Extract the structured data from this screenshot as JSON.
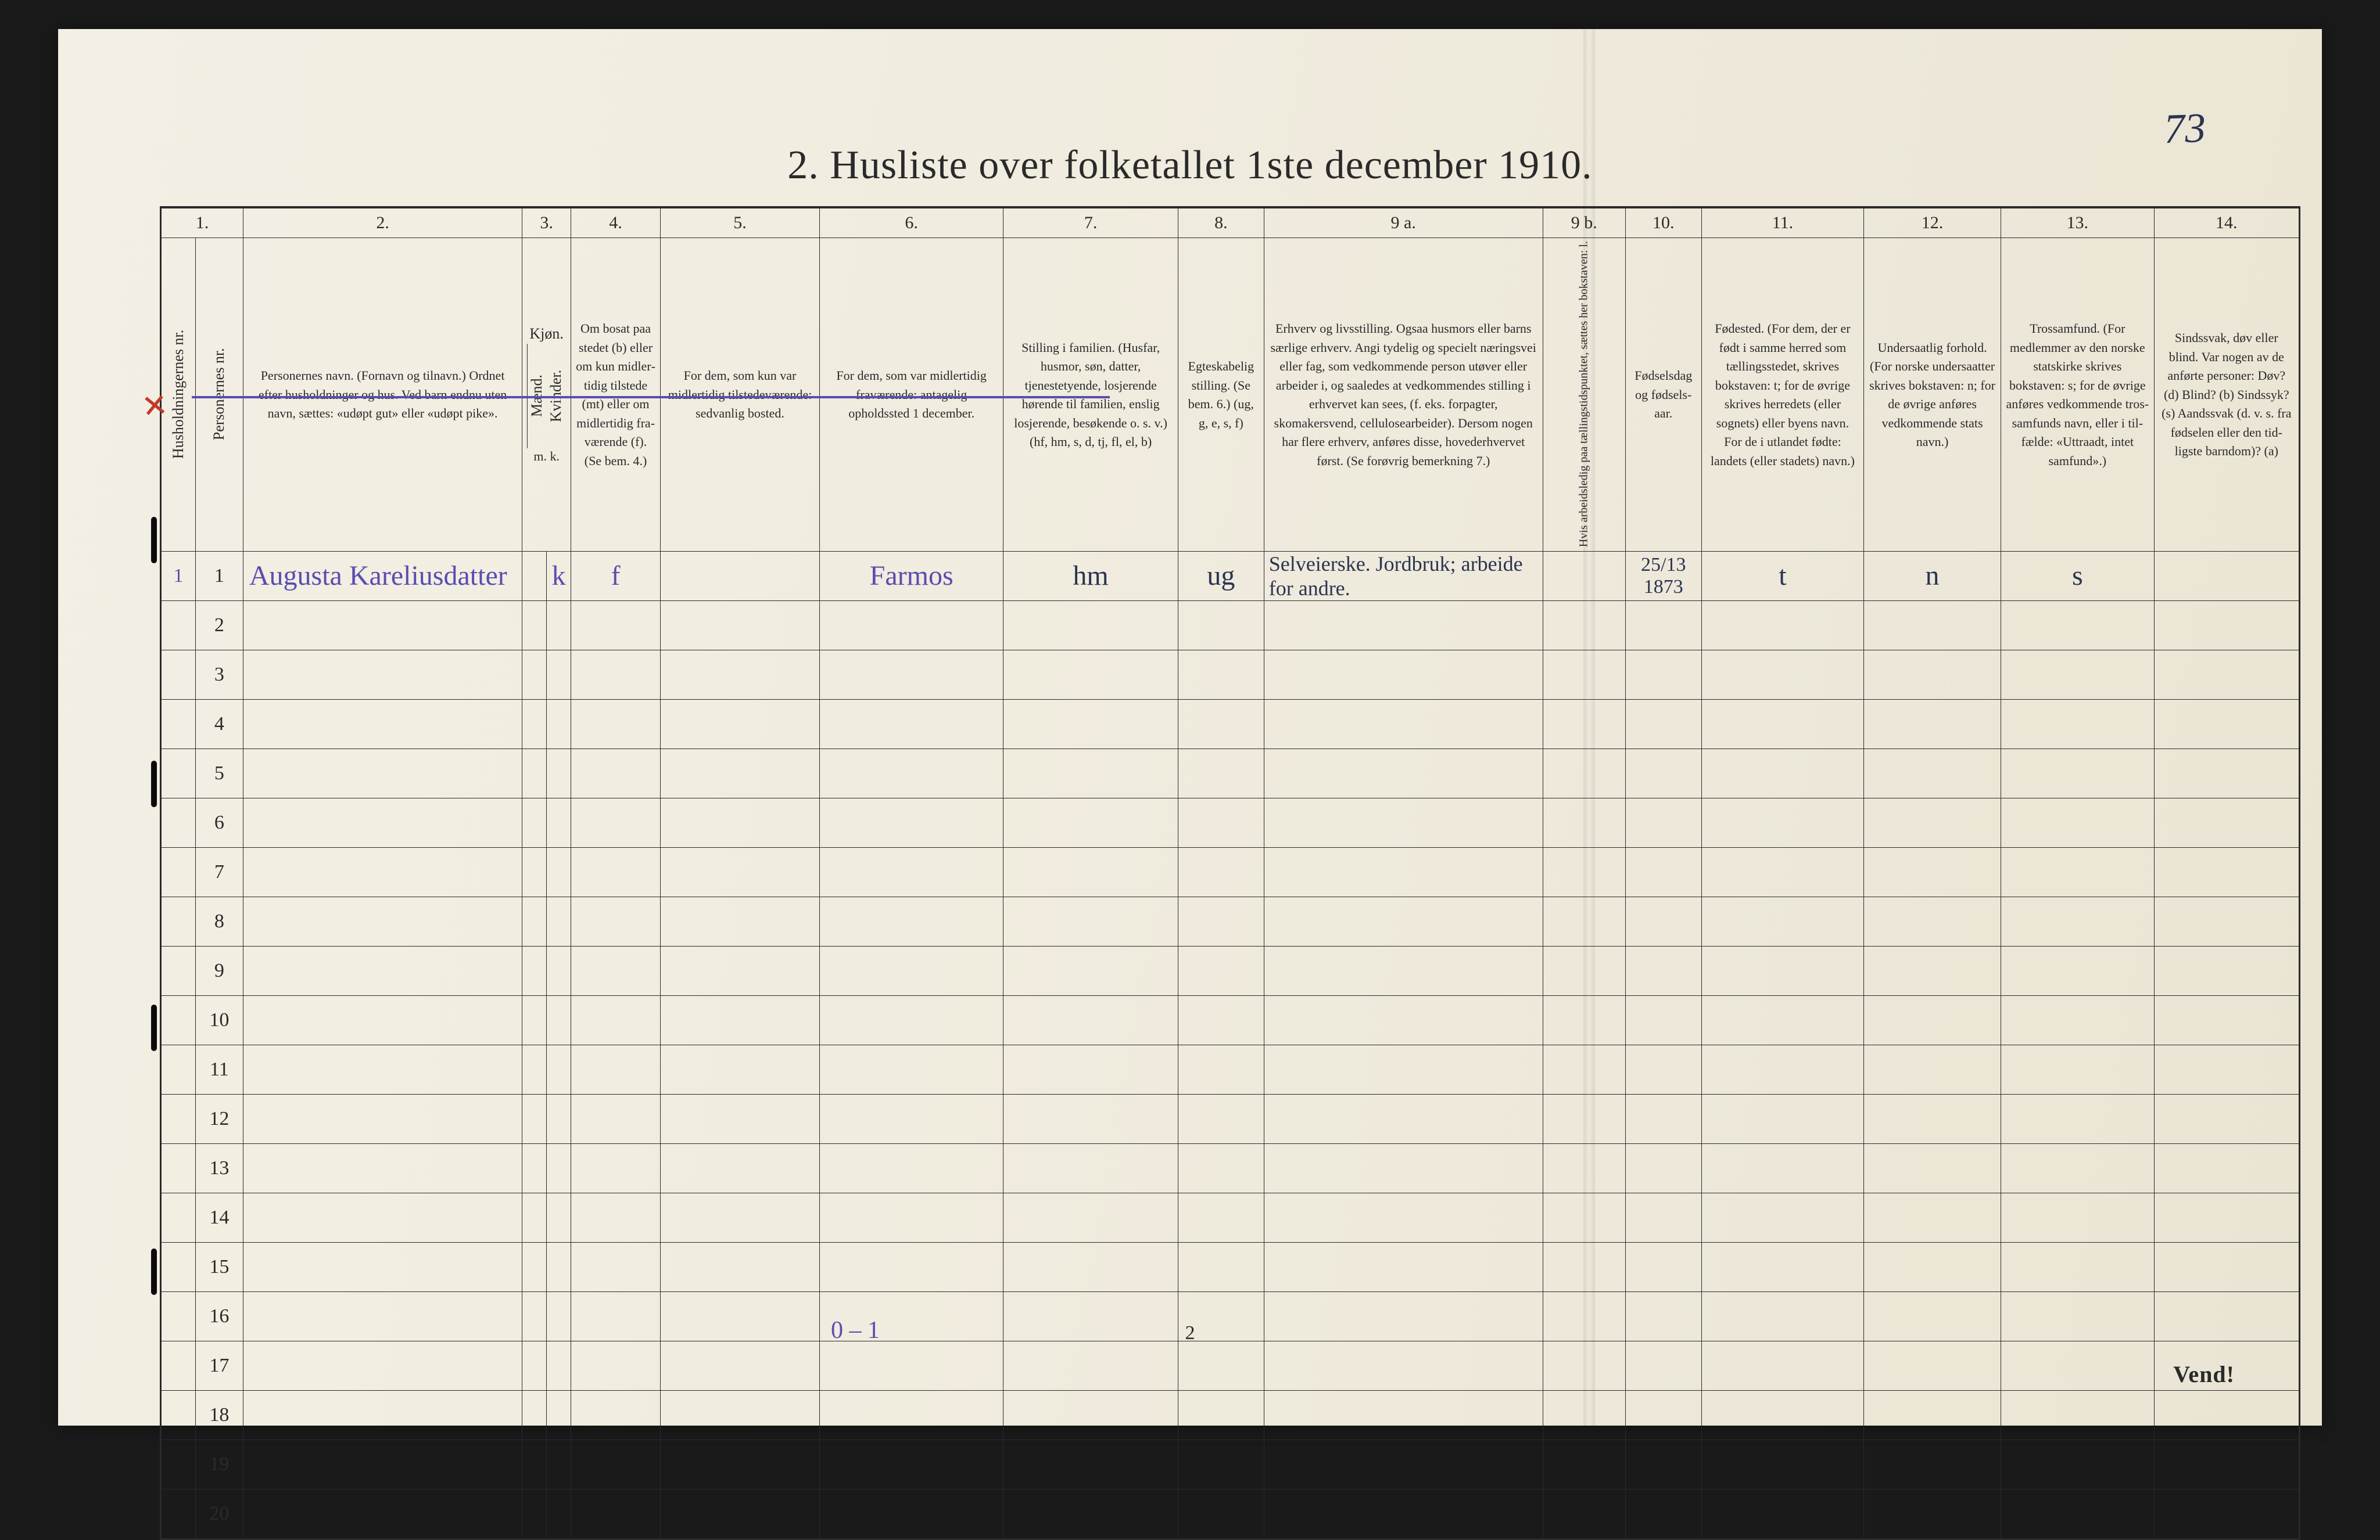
{
  "page_number_handwritten": "73",
  "title": "2.  Husliste over folketallet 1ste december 1910.",
  "colors": {
    "paper_left": "#f3efe4",
    "paper_right": "#eae4d4",
    "ink": "#2a2a2a",
    "hand_ink": "#2b3550",
    "purple_pencil": "#5a4db0",
    "red_pencil": "#c23a2a",
    "background": "#1a1a1a"
  },
  "header_numbers": [
    "1.",
    "2.",
    "3.",
    "4.",
    "5.",
    "6.",
    "7.",
    "8.",
    "9 a.",
    "9 b.",
    "10.",
    "11.",
    "12.",
    "13.",
    "14."
  ],
  "headers": {
    "c1": "Husholdningernes nr.",
    "c1b": "Personernes nr.",
    "c2": "Personernes navn.\n(Fornavn og tilnavn.)\nOrdnet efter husholdninger og hus.\nVed barn endnu uten navn, sættes: «udøpt gut» eller «udøpt pike».",
    "c3top": "Kjøn.",
    "c3a": "Mænd.",
    "c3b": "Kvinder.",
    "c3foot": "m.   k.",
    "c4": "Om bosat paa stedet (b) eller om kun midler­tidig tilstede (mt) eller om midler­tidig fra­værende (f).\n(Se bem. 4.)",
    "c5": "For dem, som kun var midlertidig tilstede­værende:\nsedvanlig bosted.",
    "c6": "For dem, som var midlertidig fraværende:\nantagelig opholdssted 1 december.",
    "c7": "Stilling i familien.\n(Husfar, husmor, søn, datter, tjenestetyende, lo­sjerende hørende til familien, enslig losjerende, besøkende o. s. v.)\n(hf, hm, s, d, tj, fl, el, b)",
    "c8": "Egteska­belig stilling.\n(Se bem. 6.)\n(ug, g, e, s, f)",
    "c9a": "Erhverv og livsstilling.\nOgsaa husmors eller barns særlige erhverv.\nAngi tydelig og specielt næringsvei eller fag, som vedkommende person utøver eller arbeider i, og saaledes at vedkommendes stilling i erhvervet kan sees, (f. eks. forpagter, skomakersvend, cellulose­arbeider). Dersom nogen har flere erhverv, anføres disse, hovederhvervet først.\n(Se forøvrig bemerkning 7.)",
    "c9b": "Hvis arbeidsledig paa tællingstidspunktet, sættes her bokstaven: l.",
    "c10": "Fødsels­dag og fødsels­aar.",
    "c11": "Fødested.\n(For dem, der er født i samme herred som tællingsstedet, skrives bokstaven: t; for de øvrige skrives herredets (eller sognets) eller byens navn. For de i utlandet fødte: landets (eller stadets) navn.)",
    "c12": "Undersaatlig forhold.\n(For norske under­saatter skrives bokstaven: n; for de øvrige anføres vedkom­mende stats navn.)",
    "c13": "Trossamfund.\n(For medlemmer av den norske statskirke skrives bokstaven: s; for de øvrige anføres vedkommende tros­samfunds navn, eller i til­fælde: «Uttraadt, intet samfund».)",
    "c14": "Sindssvak, døv eller blind.\nVar nogen av de anførte personer:\nDøv?    (d)\nBlind?   (b)\nSindssyk? (s)\nAandssvak (d. v. s. fra fødselen eller den tid­ligste barndom)? (a)"
  },
  "data_row": {
    "nr": "1",
    "pers": "1",
    "name": "Augusta Kareliusdatter",
    "sex": "k",
    "status4": "f",
    "present5": "",
    "absent6": "Farmos",
    "famrole7": "hm",
    "marital8": "ug",
    "occupation9a": "Selveierske. Jordbruk; arbeide for andre.",
    "col9b": "",
    "birth10": "25/13 1873",
    "birthplace11": "t",
    "citizen12": "n",
    "faith13": "s",
    "col14": ""
  },
  "row_count": 20,
  "footer": {
    "center_number": "2",
    "pencil_left": "0 – 1",
    "vend": "Vend!"
  }
}
